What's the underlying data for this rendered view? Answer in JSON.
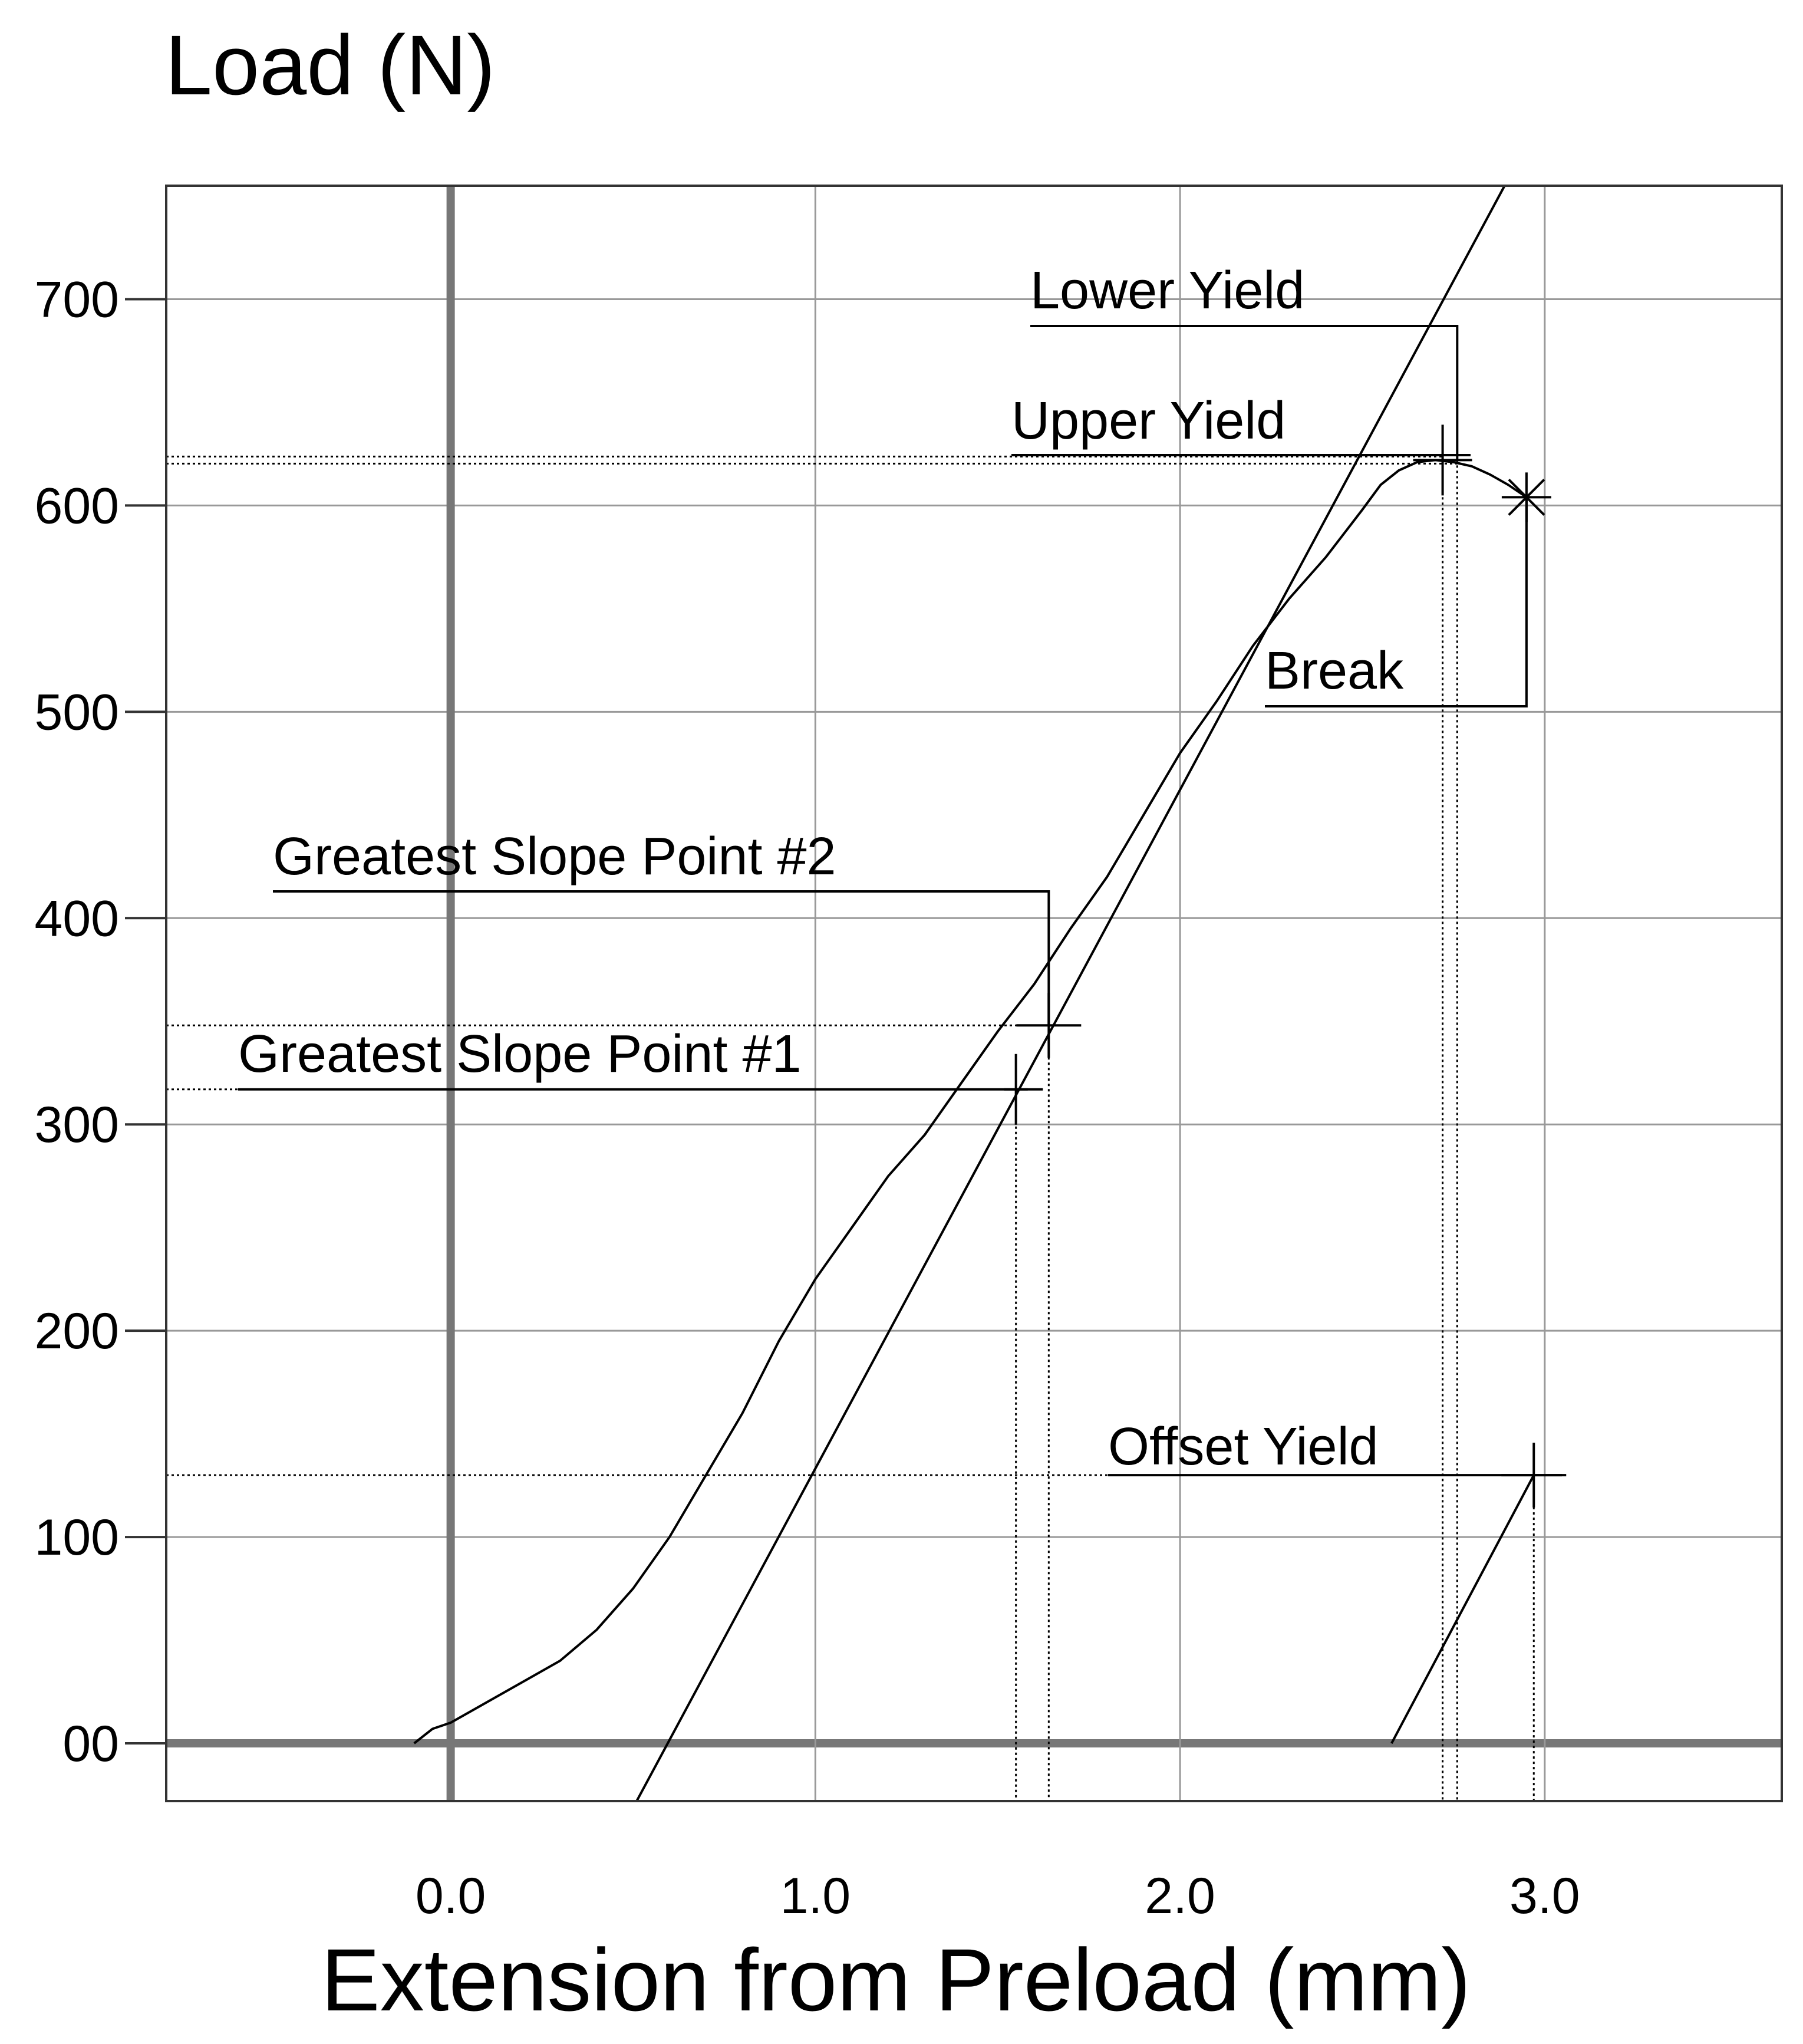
{
  "chart_data": {
    "type": "line",
    "title": "",
    "ylabel": "Load (N)",
    "xlabel": "Extension from Preload (mm)",
    "xlim": [
      -0.78,
      3.65
    ],
    "ylim": [
      -28,
      755
    ],
    "grid": true,
    "x_ticks": [
      {
        "value": 0.0,
        "label": "0.0"
      },
      {
        "value": 1.0,
        "label": "1.0"
      },
      {
        "value": 2.0,
        "label": "2.0"
      },
      {
        "value": 3.0,
        "label": "3.0"
      }
    ],
    "x_gridlines": [
      0.0,
      1.0,
      2.0,
      3.0
    ],
    "y_ticks": [
      {
        "value": 0,
        "label": "00"
      },
      {
        "value": 100,
        "label": "100"
      },
      {
        "value": 200,
        "label": "200"
      },
      {
        "value": 300,
        "label": "300"
      },
      {
        "value": 400,
        "label": "400"
      },
      {
        "value": 500,
        "label": "500"
      },
      {
        "value": 600,
        "label": "600"
      },
      {
        "value": 700,
        "label": "700"
      }
    ],
    "series": [
      {
        "x": [
          -0.1,
          -0.05,
          0.0,
          0.05,
          0.1,
          0.2,
          0.3,
          0.4,
          0.5,
          0.6,
          0.7,
          0.8,
          0.9,
          1.0,
          1.1,
          1.2,
          1.3,
          1.4,
          1.5,
          1.6,
          1.7,
          1.8,
          1.9,
          2.0,
          2.1,
          2.2,
          2.3,
          2.4,
          2.5,
          2.55,
          2.6,
          2.65,
          2.7,
          2.75,
          2.8,
          2.85,
          2.9,
          2.95
        ],
        "y": [
          0,
          7,
          10,
          15,
          20,
          30,
          40,
          55,
          75,
          100,
          130,
          160,
          195,
          225,
          250,
          275,
          295,
          320,
          345,
          368,
          395,
          420,
          450,
          480,
          505,
          532,
          555,
          575,
          598,
          610,
          617,
          621,
          622,
          621,
          619,
          615,
          610,
          604
        ]
      }
    ],
    "reference_lines": [
      {
        "kind": "slope",
        "x1": 0.51,
        "y1": -28,
        "x2": 2.89,
        "y2": 755
      },
      {
        "kind": "offset",
        "x1": 2.58,
        "y1": 0,
        "x2": 2.97,
        "y2": 130
      }
    ],
    "annotations": [
      {
        "label": "Lower Yield"
      },
      {
        "label": "Upper Yield"
      },
      {
        "label": "Break"
      },
      {
        "label": "Greatest Slope Point #2"
      },
      {
        "label": "Greatest Slope Point #1"
      },
      {
        "label": "Offset Yield"
      }
    ],
    "markers": {
      "upper_yield": {
        "x": 2.72,
        "y": 622
      },
      "lower_yield": {
        "x": 2.76,
        "y": 622
      },
      "break": {
        "x": 2.95,
        "y": 604
      },
      "gsp2": {
        "x": 1.64,
        "y": 348
      },
      "gsp1": {
        "x": 1.55,
        "y": 317
      },
      "offset_yield": {
        "x": 2.97,
        "y": 130
      }
    }
  }
}
